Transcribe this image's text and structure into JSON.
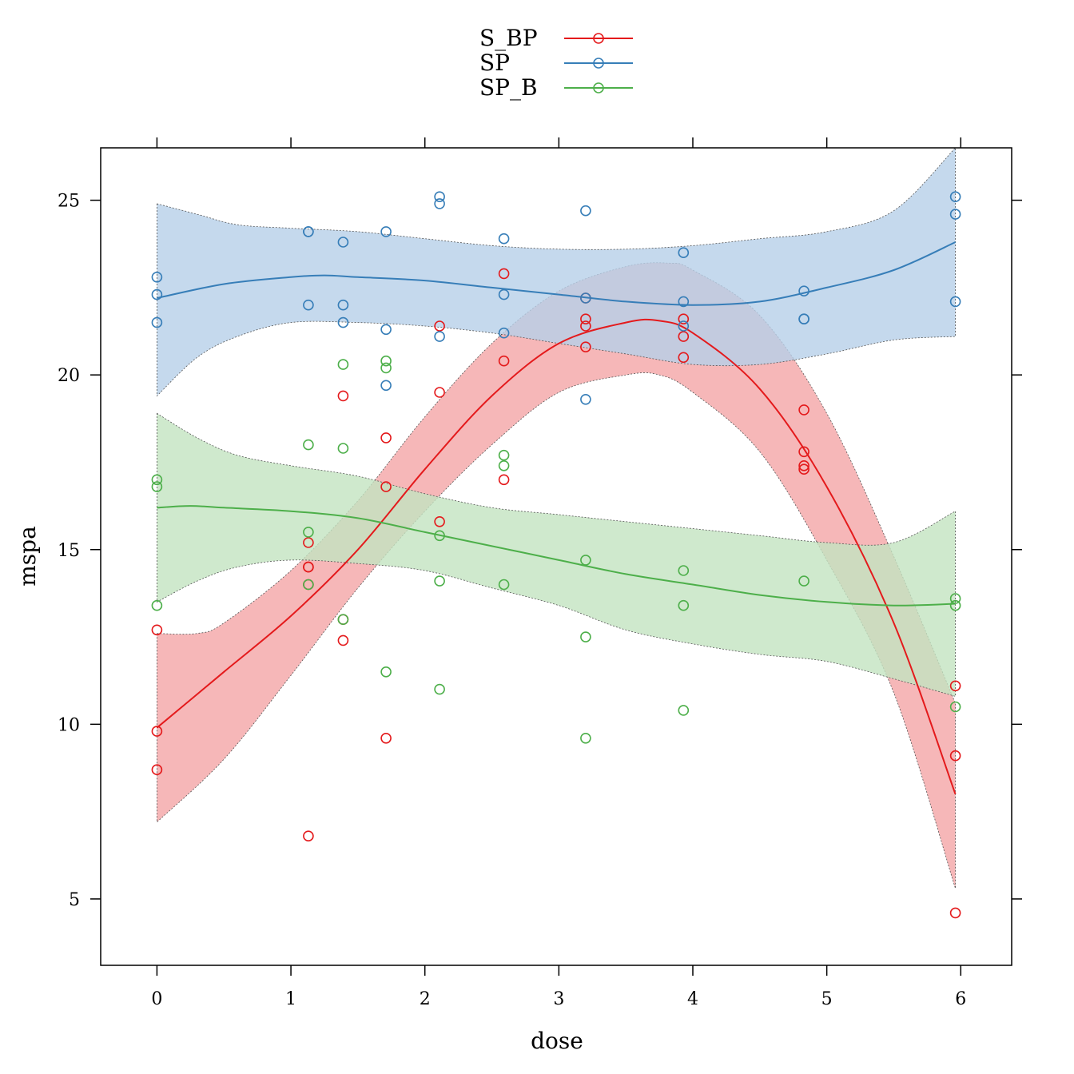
{
  "chart_data": {
    "type": "scatter",
    "title": "",
    "xlabel": "dose",
    "ylabel": "mspa",
    "xlim": [
      -0.42,
      6.38
    ],
    "ylim": [
      3.1,
      26.5
    ],
    "x_ticks": [
      0,
      1,
      2,
      3,
      4,
      5,
      6
    ],
    "y_ticks": [
      5,
      10,
      15,
      20,
      25
    ],
    "grid": false,
    "legend_position": "top-center",
    "series": [
      {
        "name": "S_BP",
        "color": "#E41A1C",
        "band_color": "#F4A5A6",
        "points": [
          [
            0,
            12.7
          ],
          [
            0,
            9.8
          ],
          [
            0,
            8.7
          ],
          [
            1.13,
            15.2
          ],
          [
            1.13,
            14.5
          ],
          [
            1.13,
            14.5
          ],
          [
            1.13,
            14.0
          ],
          [
            1.13,
            6.8
          ],
          [
            1.39,
            19.4
          ],
          [
            1.39,
            13.0
          ],
          [
            1.39,
            12.4
          ],
          [
            1.71,
            18.2
          ],
          [
            1.71,
            16.8
          ],
          [
            1.71,
            9.6
          ],
          [
            2.11,
            21.4
          ],
          [
            2.11,
            19.5
          ],
          [
            2.11,
            15.8
          ],
          [
            2.59,
            22.9
          ],
          [
            2.59,
            20.4
          ],
          [
            2.59,
            17.0
          ],
          [
            3.2,
            22.2
          ],
          [
            3.2,
            21.6
          ],
          [
            3.2,
            21.4
          ],
          [
            3.2,
            20.8
          ],
          [
            3.93,
            21.6
          ],
          [
            3.93,
            21.1
          ],
          [
            3.93,
            20.5
          ],
          [
            4.83,
            19.0
          ],
          [
            4.83,
            17.8
          ],
          [
            4.83,
            17.4
          ],
          [
            4.83,
            17.3
          ],
          [
            5.96,
            11.1
          ],
          [
            5.96,
            9.1
          ],
          [
            5.96,
            4.6
          ]
        ],
        "fit": [
          [
            0,
            9.9
          ],
          [
            0.5,
            11.5
          ],
          [
            1.0,
            13.1
          ],
          [
            1.5,
            15.0
          ],
          [
            2.0,
            17.3
          ],
          [
            2.5,
            19.4
          ],
          [
            3.0,
            20.9
          ],
          [
            3.5,
            21.5
          ],
          [
            3.75,
            21.55
          ],
          [
            4.0,
            21.2
          ],
          [
            4.5,
            19.6
          ],
          [
            5.0,
            16.8
          ],
          [
            5.5,
            12.9
          ],
          [
            5.96,
            8.0
          ]
        ],
        "band_upper": [
          [
            0,
            12.6
          ],
          [
            0.3,
            12.6
          ],
          [
            0.5,
            12.9
          ],
          [
            1.0,
            14.4
          ],
          [
            1.5,
            16.4
          ],
          [
            2.0,
            18.8
          ],
          [
            2.5,
            20.9
          ],
          [
            3.0,
            22.4
          ],
          [
            3.5,
            23.1
          ],
          [
            3.82,
            23.2
          ],
          [
            4.0,
            23.0
          ],
          [
            4.5,
            21.7
          ],
          [
            5.0,
            18.9
          ],
          [
            5.5,
            14.8
          ],
          [
            5.96,
            10.6
          ]
        ],
        "band_lower": [
          [
            0,
            7.2
          ],
          [
            0.5,
            9.0
          ],
          [
            1.0,
            11.4
          ],
          [
            1.5,
            13.9
          ],
          [
            2.0,
            16.1
          ],
          [
            2.5,
            18.0
          ],
          [
            3.0,
            19.5
          ],
          [
            3.5,
            20.0
          ],
          [
            3.75,
            20.0
          ],
          [
            4.0,
            19.5
          ],
          [
            4.5,
            17.8
          ],
          [
            5.0,
            14.7
          ],
          [
            5.5,
            10.9
          ],
          [
            5.96,
            5.3
          ]
        ]
      },
      {
        "name": "SP",
        "color": "#377EB8",
        "band_color": "#B6CFE8",
        "points": [
          [
            0,
            22.8
          ],
          [
            0,
            22.3
          ],
          [
            0,
            21.5
          ],
          [
            1.13,
            24.1
          ],
          [
            1.13,
            24.1
          ],
          [
            1.13,
            22.0
          ],
          [
            1.39,
            23.8
          ],
          [
            1.39,
            22.0
          ],
          [
            1.39,
            21.5
          ],
          [
            1.71,
            24.1
          ],
          [
            1.71,
            21.3
          ],
          [
            1.71,
            19.7
          ],
          [
            2.11,
            25.1
          ],
          [
            2.11,
            24.9
          ],
          [
            2.11,
            21.1
          ],
          [
            2.59,
            23.9
          ],
          [
            2.59,
            22.3
          ],
          [
            2.59,
            21.2
          ],
          [
            3.2,
            24.7
          ],
          [
            3.2,
            22.2
          ],
          [
            3.2,
            19.3
          ],
          [
            3.93,
            23.5
          ],
          [
            3.93,
            22.1
          ],
          [
            3.93,
            21.4
          ],
          [
            4.83,
            22.4
          ],
          [
            4.83,
            21.6
          ],
          [
            4.83,
            21.6
          ],
          [
            5.96,
            25.1
          ],
          [
            5.96,
            24.6
          ],
          [
            5.96,
            22.1
          ]
        ],
        "fit": [
          [
            0,
            22.2
          ],
          [
            0.5,
            22.6
          ],
          [
            1.0,
            22.8
          ],
          [
            1.25,
            22.85
          ],
          [
            1.5,
            22.8
          ],
          [
            2.0,
            22.7
          ],
          [
            2.5,
            22.5
          ],
          [
            3.0,
            22.3
          ],
          [
            3.5,
            22.1
          ],
          [
            4.0,
            22.0
          ],
          [
            4.5,
            22.1
          ],
          [
            5.0,
            22.5
          ],
          [
            5.5,
            23.0
          ],
          [
            5.96,
            23.8
          ]
        ],
        "band_upper": [
          [
            0,
            24.9
          ],
          [
            0.3,
            24.6
          ],
          [
            0.6,
            24.3
          ],
          [
            1.0,
            24.2
          ],
          [
            1.5,
            24.1
          ],
          [
            2.0,
            23.9
          ],
          [
            2.5,
            23.7
          ],
          [
            3.0,
            23.6
          ],
          [
            3.5,
            23.6
          ],
          [
            4.0,
            23.7
          ],
          [
            4.5,
            23.9
          ],
          [
            5.0,
            24.1
          ],
          [
            5.5,
            24.7
          ],
          [
            5.96,
            26.5
          ]
        ],
        "band_lower": [
          [
            0,
            19.4
          ],
          [
            0.3,
            20.5
          ],
          [
            0.6,
            21.1
          ],
          [
            1.0,
            21.5
          ],
          [
            1.5,
            21.5
          ],
          [
            2.0,
            21.4
          ],
          [
            2.5,
            21.2
          ],
          [
            3.0,
            20.9
          ],
          [
            3.5,
            20.6
          ],
          [
            4.0,
            20.3
          ],
          [
            4.5,
            20.3
          ],
          [
            5.0,
            20.6
          ],
          [
            5.5,
            21.0
          ],
          [
            5.96,
            21.1
          ]
        ]
      },
      {
        "name": "SP_B",
        "color": "#4DAF4A",
        "band_color": "#C3E3C1",
        "points": [
          [
            0,
            17.0
          ],
          [
            0,
            16.8
          ],
          [
            0,
            13.4
          ],
          [
            1.13,
            18.0
          ],
          [
            1.13,
            15.5
          ],
          [
            1.13,
            14.0
          ],
          [
            1.39,
            20.3
          ],
          [
            1.39,
            17.9
          ],
          [
            1.39,
            13.0
          ],
          [
            1.71,
            20.4
          ],
          [
            1.71,
            20.2
          ],
          [
            1.71,
            11.5
          ],
          [
            2.11,
            15.4
          ],
          [
            2.11,
            14.1
          ],
          [
            2.11,
            11.0
          ],
          [
            2.59,
            17.7
          ],
          [
            2.59,
            17.4
          ],
          [
            2.59,
            14.0
          ],
          [
            3.2,
            14.7
          ],
          [
            3.2,
            12.5
          ],
          [
            3.2,
            9.6
          ],
          [
            3.93,
            14.4
          ],
          [
            3.93,
            13.4
          ],
          [
            3.93,
            10.4
          ],
          [
            4.83,
            14.1
          ],
          [
            5.96,
            13.6
          ],
          [
            5.96,
            13.4
          ],
          [
            5.96,
            10.5
          ]
        ],
        "fit": [
          [
            0,
            16.2
          ],
          [
            0.25,
            16.25
          ],
          [
            0.5,
            16.2
          ],
          [
            1.0,
            16.1
          ],
          [
            1.5,
            15.9
          ],
          [
            2.0,
            15.5
          ],
          [
            2.5,
            15.1
          ],
          [
            3.0,
            14.7
          ],
          [
            3.5,
            14.3
          ],
          [
            4.0,
            14.0
          ],
          [
            4.5,
            13.7
          ],
          [
            5.0,
            13.5
          ],
          [
            5.5,
            13.4
          ],
          [
            5.96,
            13.45
          ]
        ],
        "band_upper": [
          [
            0,
            18.9
          ],
          [
            0.3,
            18.2
          ],
          [
            0.6,
            17.7
          ],
          [
            1.0,
            17.4
          ],
          [
            1.5,
            17.1
          ],
          [
            2.0,
            16.6
          ],
          [
            2.5,
            16.2
          ],
          [
            3.0,
            16.0
          ],
          [
            3.5,
            15.8
          ],
          [
            4.0,
            15.6
          ],
          [
            4.5,
            15.4
          ],
          [
            5.0,
            15.2
          ],
          [
            5.5,
            15.2
          ],
          [
            5.96,
            16.1
          ]
        ],
        "band_lower": [
          [
            0,
            13.5
          ],
          [
            0.3,
            14.1
          ],
          [
            0.6,
            14.5
          ],
          [
            1.0,
            14.7
          ],
          [
            1.5,
            14.6
          ],
          [
            2.0,
            14.4
          ],
          [
            2.5,
            13.9
          ],
          [
            3.0,
            13.4
          ],
          [
            3.5,
            12.7
          ],
          [
            4.0,
            12.3
          ],
          [
            4.5,
            12.0
          ],
          [
            5.0,
            11.8
          ],
          [
            5.5,
            11.3
          ],
          [
            5.96,
            10.8
          ]
        ]
      }
    ]
  }
}
